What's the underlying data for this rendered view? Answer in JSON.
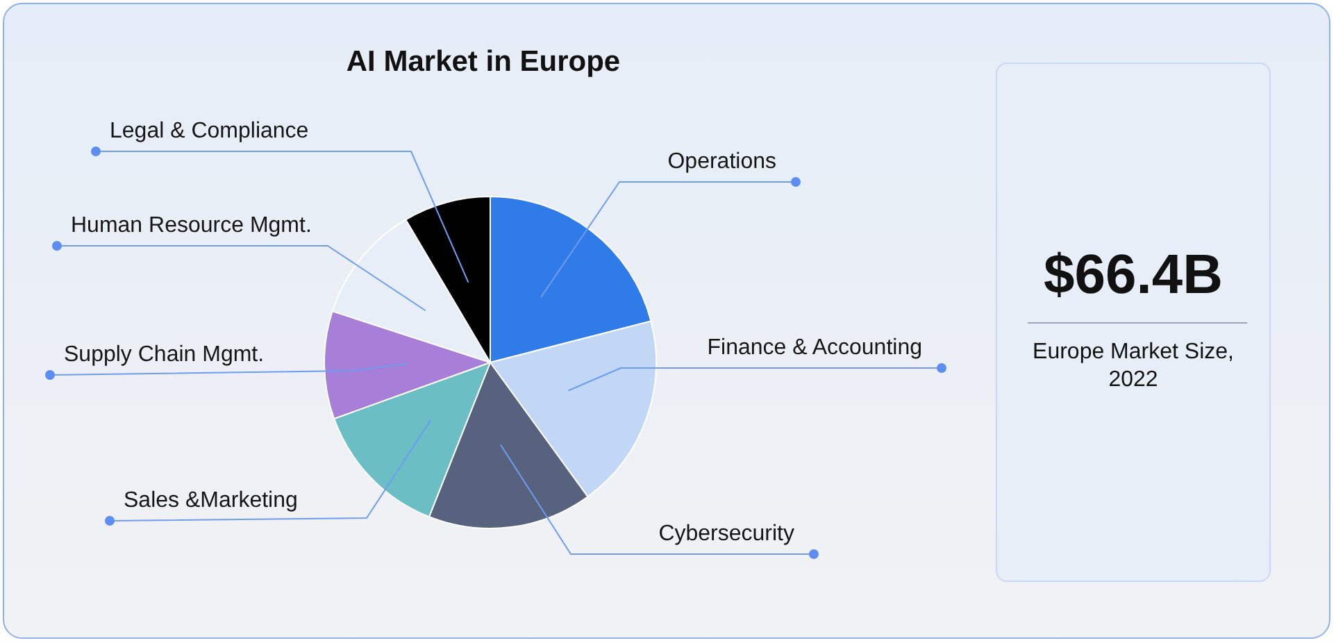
{
  "chart_data": [
    {
      "type": "pie",
      "title": "AI Market in Europe",
      "categories": [
        "Operations",
        "Finance & Accounting",
        "Cybersecurity",
        "Sales &Marketing",
        "Supply Chain Mgmt.",
        "Human Resource Mgmt.",
        "Legal & Compliance"
      ],
      "values": [
        21,
        19,
        16,
        13.5,
        10.5,
        11.5,
        8.5
      ],
      "colors": [
        "#2f7be8",
        "#c2d7f5",
        "#57637e",
        "#6bbfc4",
        "#a77fd8",
        "#e7eef7",
        "#000000"
      ],
      "legend": false
    },
    {
      "type": "other",
      "title": "$66.4B",
      "subtitle": "Europe Market Size, 2022"
    }
  ]
}
